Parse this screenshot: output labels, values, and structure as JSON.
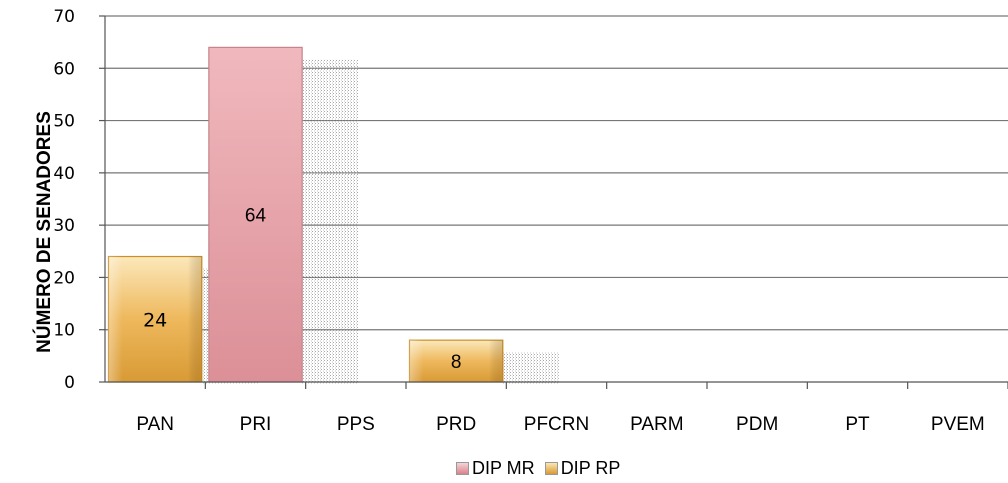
{
  "chart_data": {
    "type": "bar",
    "title": "",
    "xlabel": "",
    "ylabel": "NÚMERO DE SENADORES",
    "ylim": [
      0,
      70
    ],
    "yticks": [
      0,
      10,
      20,
      30,
      40,
      50,
      60,
      70
    ],
    "grid": true,
    "legend_position": "bottom",
    "categories": [
      "PAN",
      "PRI",
      "PPS",
      "PRD",
      "PFCRN",
      "PARM",
      "PDM",
      "PT",
      "PVEM"
    ],
    "bars": [
      {
        "category": "PAN",
        "series": "DIP RP",
        "value": 24,
        "label": "24"
      },
      {
        "category": "PRI",
        "series": "DIP MR",
        "value": 64,
        "label": "64"
      },
      {
        "category": "PRD",
        "series": "DIP RP",
        "value": 8,
        "label": "8"
      }
    ],
    "series": [
      {
        "name": "DIP MR",
        "color": "#e3a0a6"
      },
      {
        "name": "DIP RP",
        "color": "#e8b55a"
      }
    ]
  }
}
